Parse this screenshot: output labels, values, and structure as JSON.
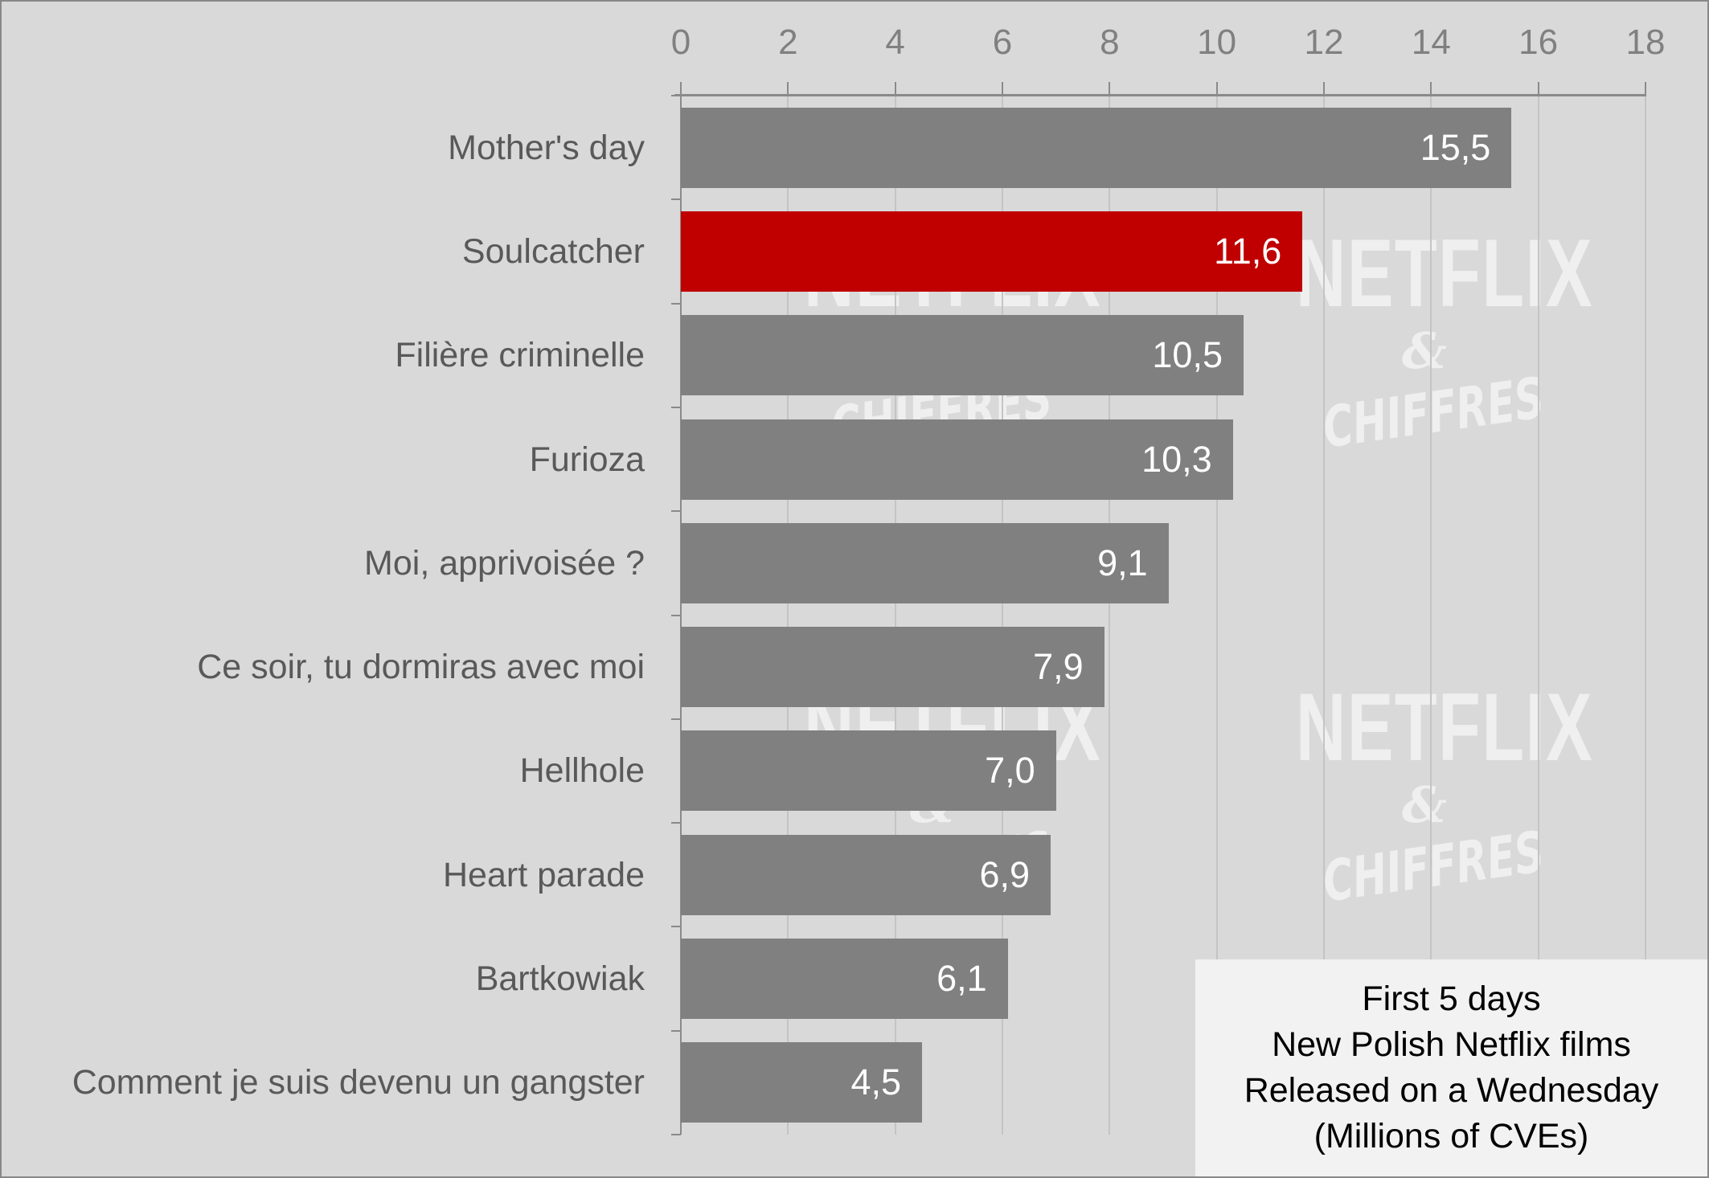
{
  "chart_data": {
    "type": "bar",
    "orientation": "horizontal",
    "title": "First 5 days New Polish Netflix films Released on a Wednesday (Millions of CVEs)",
    "xlabel": "",
    "ylabel": "",
    "xlim": [
      0,
      18
    ],
    "x_ticks": [
      "0",
      "2",
      "4",
      "6",
      "8",
      "10",
      "12",
      "14",
      "16",
      "18"
    ],
    "x_axis_position": "top",
    "grid": "vertical",
    "categories": [
      "Mother's day",
      "Soulcatcher",
      "Filière criminelle",
      "Furioza",
      "Moi, apprivoisée ?",
      "Ce soir, tu dormiras avec moi",
      "Hellhole",
      "Heart parade",
      "Bartkowiak",
      "Comment je suis devenu un gangster"
    ],
    "values": [
      15.5,
      11.6,
      10.5,
      10.3,
      9.1,
      7.9,
      7.0,
      6.9,
      6.1,
      4.5
    ],
    "value_labels": [
      "15,5",
      "11,6",
      "10,5",
      "10,3",
      "9,1",
      "7,9",
      "7,0",
      "6,9",
      "6,1",
      "4,5"
    ],
    "highlighted_category": "Soulcatcher",
    "colors": {
      "default_bar": "#808080",
      "highlight_bar": "#c00000",
      "background": "#d9d9d9"
    },
    "legend_position": "bottom-right"
  },
  "legend": {
    "lines": [
      "First 5 days",
      "New Polish Netflix films",
      "Released on a Wednesday",
      "(Millions of CVEs)"
    ]
  },
  "watermark": {
    "line1": "NETFLIX",
    "line2": "&",
    "line3": "CHIFFRES"
  }
}
